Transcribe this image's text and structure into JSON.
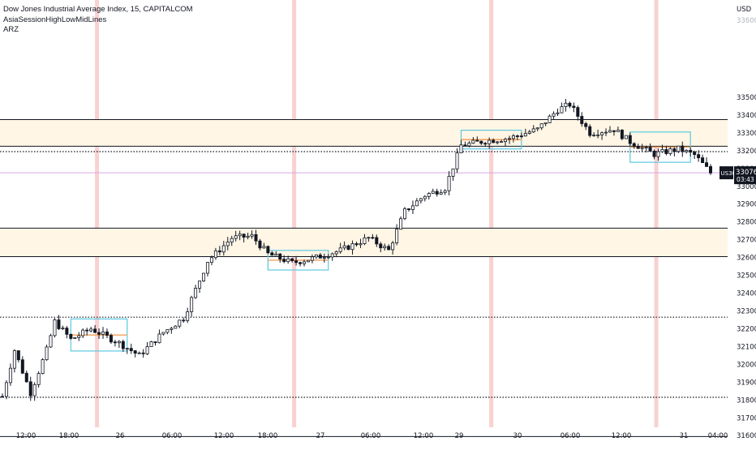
{
  "legend": {
    "title": "Dow Jones Industrial Average Index, 15, CAPITALCOM",
    "indicator1": "AsiaSessionHighLowMidLines",
    "indicator2": "ARZ"
  },
  "colors": {
    "up": "#131722",
    "down": "#131722",
    "zone_fill": "#fff6e5",
    "session_box": "#5bc8e0",
    "session_mid": "#f5a05a",
    "session_bg": "#f7c6c6",
    "last_price_line": "#d8a6e6",
    "label_bg": "#131722",
    "grid": "#d1d4dc"
  },
  "chart_data": {
    "type": "candlestick",
    "title": "Dow Jones Industrial Average Index, 15, CAPITALCOM",
    "symbol": "US30",
    "interval": "15",
    "currency_label": "USD",
    "ylim": [
      31550,
      34000
    ],
    "y_ticks": [
      31600,
      31700,
      31800,
      31900,
      32000,
      32100,
      32200,
      32300,
      32400,
      32500,
      32600,
      32700,
      32800,
      32900,
      33000,
      33100,
      33200,
      33300,
      33400,
      33500
    ],
    "y_ticks_faint": [
      "33600"
    ],
    "x_labels": [
      "12:00",
      "18:00",
      "26",
      "06:00",
      "12:00",
      "18:00",
      "27",
      "06:00",
      "12:00",
      "29",
      "30",
      "06:00",
      "12:00",
      "31",
      "04:00"
    ],
    "last_price": {
      "symbol": "US30",
      "value": "33076",
      "countdown": "03:43"
    },
    "zones": [
      {
        "low": 33225,
        "high": 33375
      },
      {
        "low": 32605,
        "high": 32765
      }
    ],
    "solid_levels": [
      33375,
      33225,
      32765,
      32605,
      31595
    ],
    "dotted_levels": [
      33195,
      32265,
      31815
    ],
    "last_price_level": 33076,
    "path_points": [
      {
        "t": 0,
        "p": 31820
      },
      {
        "t": 3,
        "p": 32080
      },
      {
        "t": 7,
        "p": 31840
      },
      {
        "t": 11,
        "p": 32080
      },
      {
        "t": 13,
        "p": 32240
      },
      {
        "t": 17,
        "p": 32140
      },
      {
        "t": 22,
        "p": 32200
      },
      {
        "t": 29,
        "p": 32120
      },
      {
        "t": 34,
        "p": 32050
      },
      {
        "t": 40,
        "p": 32180
      },
      {
        "t": 45,
        "p": 32260
      },
      {
        "t": 51,
        "p": 32580
      },
      {
        "t": 57,
        "p": 32710
      },
      {
        "t": 62,
        "p": 32720
      },
      {
        "t": 66,
        "p": 32620
      },
      {
        "t": 72,
        "p": 32570
      },
      {
        "t": 78,
        "p": 32600
      },
      {
        "t": 84,
        "p": 32640
      },
      {
        "t": 91,
        "p": 32710
      },
      {
        "t": 96,
        "p": 32640
      },
      {
        "t": 100,
        "p": 32860
      },
      {
        "t": 105,
        "p": 32950
      },
      {
        "t": 110,
        "p": 32990
      },
      {
        "t": 114,
        "p": 33230
      },
      {
        "t": 120,
        "p": 33255
      },
      {
        "t": 126,
        "p": 33270
      },
      {
        "t": 133,
        "p": 33320
      },
      {
        "t": 138,
        "p": 33430
      },
      {
        "t": 141,
        "p": 33460
      },
      {
        "t": 146,
        "p": 33300
      },
      {
        "t": 152,
        "p": 33320
      },
      {
        "t": 156,
        "p": 33250
      },
      {
        "t": 162,
        "p": 33180
      },
      {
        "t": 168,
        "p": 33210
      },
      {
        "t": 172,
        "p": 33176
      },
      {
        "t": 176,
        "p": 33076
      }
    ],
    "candle_count": 177,
    "session_boxes": [
      {
        "t_start": 17,
        "t_end": 31,
        "high": 32255,
        "low": 32075,
        "mid": 32165
      },
      {
        "t_start": 66,
        "t_end": 81,
        "high": 32640,
        "low": 32530,
        "mid": 32585
      },
      {
        "t_start": 114,
        "t_end": 129,
        "high": 33315,
        "low": 33210,
        "mid": 33262
      },
      {
        "t_start": 156,
        "t_end": 171,
        "high": 33305,
        "low": 33135,
        "mid": 33220
      }
    ],
    "session_highlight_times": [
      23.5,
      72.5,
      121.5,
      162.5
    ],
    "grid": false,
    "legend_position": "top-left"
  }
}
